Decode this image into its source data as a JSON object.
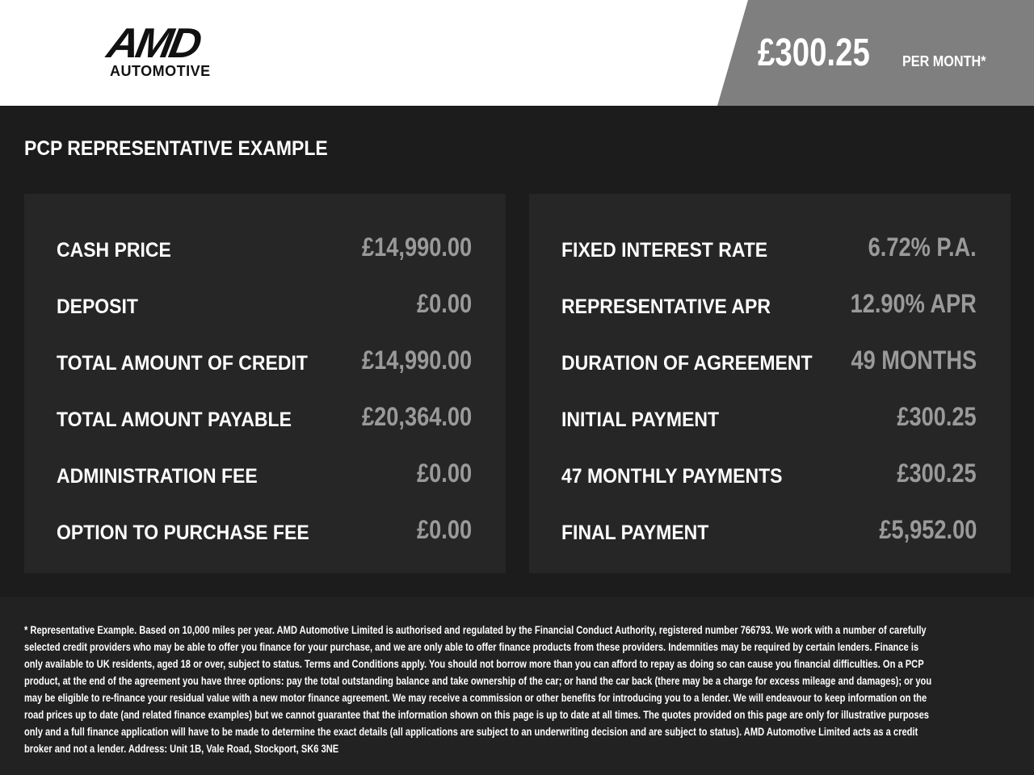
{
  "header": {
    "logo_text": "AMD",
    "logo_subtext": "AUTOMOTIVE",
    "price": "£300.25",
    "price_suffix": "PER MONTH*"
  },
  "title": "PCP REPRESENTATIVE EXAMPLE",
  "left": [
    {
      "label": "CASH PRICE",
      "value": "£14,990.00"
    },
    {
      "label": "DEPOSIT",
      "value": "£0.00"
    },
    {
      "label": "TOTAL AMOUNT OF CREDIT",
      "value": "£14,990.00"
    },
    {
      "label": "TOTAL AMOUNT PAYABLE",
      "value": "£20,364.00"
    },
    {
      "label": "ADMINISTRATION FEE",
      "value": "£0.00"
    },
    {
      "label": "OPTION TO PURCHASE FEE",
      "value": "£0.00"
    }
  ],
  "right": [
    {
      "label": "FIXED INTEREST RATE",
      "value": "6.72% P.A."
    },
    {
      "label": "REPRESENTATIVE APR",
      "value": "12.90% APR"
    },
    {
      "label": "DURATION OF AGREEMENT",
      "value": "49 MONTHS"
    },
    {
      "label": "INITIAL PAYMENT",
      "value": "£300.25"
    },
    {
      "label": "47 MONTHLY PAYMENTS",
      "value": "£300.25"
    },
    {
      "label": "FINAL PAYMENT",
      "value": "£5,952.00"
    }
  ],
  "disclaimer": "* Representative Example. Based on 10,000 miles per year. AMD Automotive Limited is authorised and regulated by the Financial Conduct Authority, registered number 766793. We work with a number of carefully selected credit providers who may be able to offer you finance for your purchase, and we are only able to offer finance products from these providers. Indemnities may be required by certain lenders. Finance is only available to UK residents, aged 18 or over, subject to status. Terms and Conditions apply. You should not borrow more than you can afford to repay as doing so can cause you financial difficulties. On a PCP product, at the end of the agreement you have three options: pay the total outstanding balance and take ownership of the car; or hand the car back (there may be a charge for excess mileage and damages); or you may be eligible to re-finance your residual value with a new motor finance agreement. We may receive a commission or other benefits for introducing you to a lender. We will endeavour to keep information on the road prices up to date (and related finance examples) but we cannot guarantee that the information shown on this page is up to date at all times. The quotes provided on this page are only for illustrative purposes only and a full finance application will have to be made to determine the exact details (all applications are subject to an underwriting decision and are subject to status). AMD Automotive Limited acts as a credit broker and not a lender. Address: Unit 1B, Vale Road, Stockport, SK6 3NE"
}
